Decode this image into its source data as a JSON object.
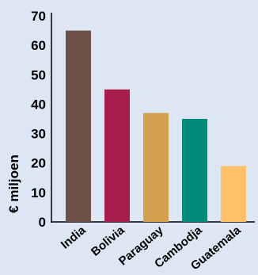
{
  "chart_data": {
    "type": "bar",
    "title": "",
    "xlabel": "",
    "ylabel": "€ miljoen",
    "categories": [
      "India",
      "Bolivia",
      "Paraguay",
      "Cambodja",
      "Guatemala"
    ],
    "values": [
      65,
      45,
      37,
      35,
      19
    ],
    "colors": [
      "#6e5048",
      "#a81c4c",
      "#d4a050",
      "#008a78",
      "#ffc06a"
    ],
    "ylim": [
      0,
      70
    ],
    "yticks": [
      "0",
      "10",
      "20",
      "30",
      "40",
      "50",
      "60",
      "70"
    ],
    "grid": false,
    "legend": "none"
  }
}
